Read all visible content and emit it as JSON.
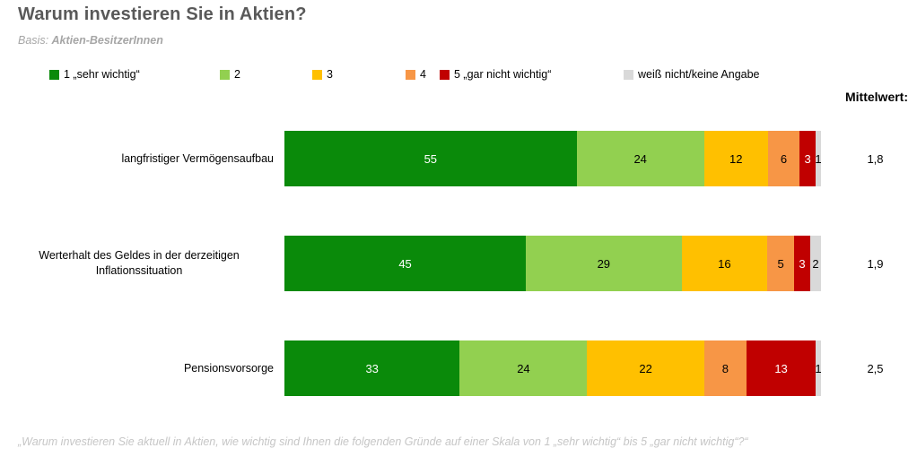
{
  "header": {
    "title": "Warum investieren Sie in Aktien?",
    "subtitle_prefix": "Basis: ",
    "subtitle_bold": "Aktien-BesitzerInnen"
  },
  "chart_data": {
    "type": "bar",
    "orientation": "horizontal",
    "stacked": true,
    "unit": "percent",
    "legend_position": "top",
    "gridlines": false,
    "axis": {
      "x_min": 0,
      "x_max": 100
    },
    "categories": [
      "langfristiger Vermögensaufbau",
      "Werterhalt des Geldes in der derzeitigen Inflationssituation",
      "Pensionsvorsorge"
    ],
    "series": [
      {
        "name": "1 „sehr wichtig“",
        "color": "#0a8a0a",
        "text_color": "#ffffff",
        "values": [
          55,
          45,
          33
        ]
      },
      {
        "name": "2",
        "color": "#92d050",
        "text_color": "#000000",
        "values": [
          24,
          29,
          24
        ]
      },
      {
        "name": "3",
        "color": "#ffc000",
        "text_color": "#000000",
        "values": [
          12,
          16,
          22
        ]
      },
      {
        "name": "4",
        "color": "#f79646",
        "text_color": "#000000",
        "values": [
          6,
          5,
          8
        ]
      },
      {
        "name": "5 „gar nicht wichtig“",
        "color": "#c00000",
        "text_color": "#ffffff",
        "values": [
          3,
          3,
          13
        ]
      },
      {
        "name": "weiß nicht/keine Angabe",
        "color": "#d9d9d9",
        "text_color": "#000000",
        "values": [
          1,
          2,
          1
        ]
      }
    ],
    "mean_header": "Mittelwert:",
    "means": [
      "1,8",
      "1,9",
      "2,5"
    ]
  },
  "footer": {
    "note": "„Warum investieren Sie aktuell in Aktien, wie wichtig sind Ihnen die folgenden Gründe auf einer Skala von 1 „sehr wichtig“ bis 5 „gar nicht wichtig“?“"
  },
  "colors": {
    "title": "#595959",
    "subtitle": "#a6a6a6",
    "footnote": "#c6c6c6",
    "background": "#ffffff"
  }
}
